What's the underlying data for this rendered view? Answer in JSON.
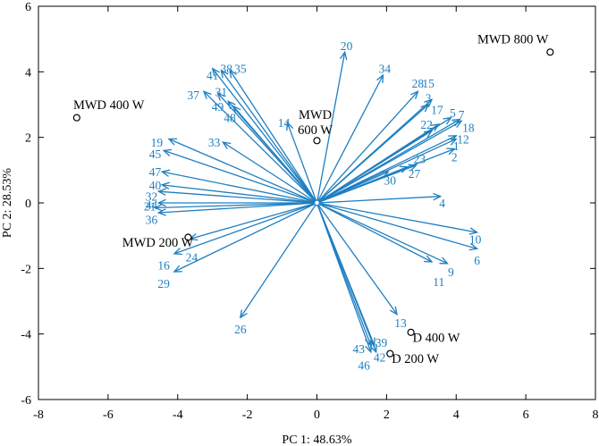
{
  "chart_data": {
    "type": "scatter",
    "title": "",
    "xlabel": "PC 1: 48.63%",
    "ylabel": "PC 2: 28.53%",
    "xlim": [
      -8,
      8
    ],
    "ylim": [
      -6,
      6
    ],
    "xticks": [
      "-8",
      "-6",
      "-4",
      "-2",
      "0",
      "2",
      "4",
      "6",
      "8"
    ],
    "yticks": [
      "-6",
      "-4",
      "-2",
      "0",
      "2",
      "4",
      "6"
    ],
    "samples": [
      {
        "name": "MWD 800 W",
        "x": 6.7,
        "y": 4.6,
        "label_lines": [
          "MWD 800 W"
        ],
        "anchor": "end",
        "lx": 6.65,
        "ly": 5.0
      },
      {
        "name": "MWD 400 W",
        "x": -6.9,
        "y": 2.6,
        "label_lines": [
          "MWD 400 W"
        ],
        "anchor": "start",
        "lx": -7.0,
        "ly": 3.0
      },
      {
        "name": "MWD 600 W",
        "x": 0.0,
        "y": 1.9,
        "label_lines": [
          "MWD",
          "600 W"
        ],
        "anchor": "middle",
        "lx": -0.05,
        "ly": 2.7
      },
      {
        "name": "MWD 200 W",
        "x": -3.7,
        "y": -1.05,
        "label_lines": [
          "MWD 200 W"
        ],
        "anchor": "end",
        "lx": -3.55,
        "ly": -1.2
      },
      {
        "name": "D 400 W",
        "x": 2.7,
        "y": -3.95,
        "label_lines": [
          "D 400 W"
        ],
        "anchor": "start",
        "lx": 2.75,
        "ly": -4.1
      },
      {
        "name": "D 200 W",
        "x": 2.1,
        "y": -4.6,
        "label_lines": [
          "D 200 W"
        ],
        "anchor": "start",
        "lx": 2.15,
        "ly": -4.75
      }
    ],
    "loadings": [
      {
        "label": "1",
        "x": 4.0,
        "y": 1.95,
        "lx": 4.0,
        "ly": 1.75
      },
      {
        "label": "2",
        "x": 3.95,
        "y": 1.65,
        "lx": 3.95,
        "ly": 1.4
      },
      {
        "label": "3",
        "x": 3.2,
        "y": 3.0,
        "lx": 3.2,
        "ly": 3.2
      },
      {
        "label": "4",
        "x": 3.55,
        "y": 0.2,
        "lx": 3.6,
        "ly": 0.0
      },
      {
        "label": "5",
        "x": 3.85,
        "y": 2.6,
        "lx": 3.9,
        "ly": 2.75
      },
      {
        "label": "6",
        "x": 4.6,
        "y": -1.4,
        "lx": 4.6,
        "ly": -1.75
      },
      {
        "label": "7",
        "x": 4.1,
        "y": 2.55,
        "lx": 4.15,
        "ly": 2.7
      },
      {
        "label": "9",
        "x": 3.75,
        "y": -1.85,
        "lx": 3.85,
        "ly": -2.1
      },
      {
        "label": "10",
        "x": 4.6,
        "y": -0.9,
        "lx": 4.55,
        "ly": -1.1
      },
      {
        "label": "11",
        "x": 3.3,
        "y": -1.8,
        "lx": 3.5,
        "ly": -2.4
      },
      {
        "label": "12",
        "x": 4.0,
        "y": 2.05,
        "lx": 4.2,
        "ly": 1.95
      },
      {
        "label": "13",
        "x": 2.3,
        "y": -3.4,
        "lx": 2.4,
        "ly": -3.65
      },
      {
        "label": "14",
        "x": -0.85,
        "y": 2.45,
        "lx": -0.95,
        "ly": 2.45
      },
      {
        "label": "15",
        "x": 3.3,
        "y": 3.15,
        "lx": 3.2,
        "ly": 3.65
      },
      {
        "label": "16",
        "x": -4.1,
        "y": -1.55,
        "lx": -4.4,
        "ly": -1.9
      },
      {
        "label": "17",
        "x": 3.5,
        "y": 2.4,
        "lx": 3.45,
        "ly": 2.85
      },
      {
        "label": "18",
        "x": 4.15,
        "y": 2.5,
        "lx": 4.35,
        "ly": 2.3
      },
      {
        "label": "19",
        "x": -4.25,
        "y": 1.95,
        "lx": -4.6,
        "ly": 1.85
      },
      {
        "label": "20",
        "x": 0.8,
        "y": 4.6,
        "lx": 0.85,
        "ly": 4.8
      },
      {
        "label": "21",
        "x": -4.55,
        "y": 0.0,
        "lx": -4.8,
        "ly": -0.1
      },
      {
        "label": "22",
        "x": 3.3,
        "y": 2.2,
        "lx": 3.15,
        "ly": 2.4
      },
      {
        "label": "23",
        "x": 2.85,
        "y": 1.15,
        "lx": 2.95,
        "ly": 1.35
      },
      {
        "label": "24",
        "x": -3.65,
        "y": -1.1,
        "lx": -3.6,
        "ly": -1.65
      },
      {
        "label": "26",
        "x": -2.2,
        "y": -3.5,
        "lx": -2.2,
        "ly": -3.85
      },
      {
        "label": "27",
        "x": 2.6,
        "y": 1.1,
        "lx": 2.8,
        "ly": 0.9
      },
      {
        "label": "28",
        "x": 2.9,
        "y": 3.4,
        "lx": 2.9,
        "ly": 3.65
      },
      {
        "label": "29",
        "x": -4.1,
        "y": -2.1,
        "lx": -4.4,
        "ly": -2.45
      },
      {
        "label": "30",
        "x": 2.05,
        "y": 0.95,
        "lx": 2.1,
        "ly": 0.7
      },
      {
        "label": "31",
        "x": -2.85,
        "y": 3.35,
        "lx": -2.75,
        "ly": 3.4
      },
      {
        "label": "32",
        "x": -4.55,
        "y": 0.35,
        "lx": -4.75,
        "ly": 0.2
      },
      {
        "label": "33",
        "x": -2.7,
        "y": 1.85,
        "lx": -2.95,
        "ly": 1.85
      },
      {
        "label": "34",
        "x": 1.9,
        "y": 3.9,
        "lx": 1.95,
        "ly": 4.1
      },
      {
        "label": "35",
        "x": -2.5,
        "y": 4.05,
        "lx": -2.2,
        "ly": 4.1
      },
      {
        "label": "36",
        "x": -4.55,
        "y": -0.3,
        "lx": -4.75,
        "ly": -0.5
      },
      {
        "label": "37",
        "x": -3.25,
        "y": 3.4,
        "lx": -3.55,
        "ly": 3.3
      },
      {
        "label": "38",
        "x": -2.75,
        "y": 4.05,
        "lx": -2.6,
        "ly": 4.1
      },
      {
        "label": "39",
        "x": 1.65,
        "y": -4.35,
        "lx": 1.85,
        "ly": -4.25
      },
      {
        "label": "40",
        "x": -4.45,
        "y": 0.55,
        "lx": -4.65,
        "ly": 0.55
      },
      {
        "label": "41",
        "x": -3.0,
        "y": 4.1,
        "lx": -3.0,
        "ly": 3.9
      },
      {
        "label": "42",
        "x": 1.7,
        "y": -4.55,
        "lx": 1.8,
        "ly": -4.7
      },
      {
        "label": "43",
        "x": 1.55,
        "y": -4.55,
        "lx": 1.2,
        "ly": -4.45
      },
      {
        "label": "44",
        "x": -4.65,
        "y": -0.15,
        "lx": -4.75,
        "ly": -0.05
      },
      {
        "label": "45",
        "x": -4.4,
        "y": 1.6,
        "lx": -4.65,
        "ly": 1.5
      },
      {
        "label": "46",
        "x": 1.55,
        "y": -4.35,
        "lx": 1.35,
        "ly": -4.95
      },
      {
        "label": "47",
        "x": -4.45,
        "y": 0.95,
        "lx": -4.65,
        "ly": 0.95
      },
      {
        "label": "48",
        "x": -2.4,
        "y": 2.95,
        "lx": -2.5,
        "ly": 2.6
      },
      {
        "label": "49",
        "x": -2.55,
        "y": 3.1,
        "lx": -2.85,
        "ly": 2.95
      }
    ]
  }
}
